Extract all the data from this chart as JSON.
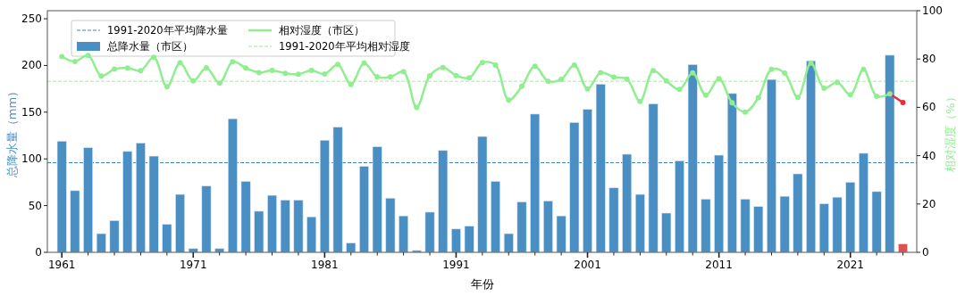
{
  "chart_data": {
    "type": "bar",
    "xlabel": "年份",
    "ylabel": "总降水量（mm）",
    "y2label": "相对湿度（%）",
    "x": [
      1961,
      1962,
      1963,
      1964,
      1965,
      1966,
      1967,
      1968,
      1969,
      1970,
      1971,
      1972,
      1973,
      1974,
      1975,
      1976,
      1977,
      1978,
      1979,
      1980,
      1981,
      1982,
      1983,
      1984,
      1985,
      1986,
      1987,
      1988,
      1989,
      1990,
      1991,
      1992,
      1993,
      1994,
      1995,
      1996,
      1997,
      1998,
      1999,
      2000,
      2001,
      2002,
      2003,
      2004,
      2005,
      2006,
      2007,
      2008,
      2009,
      2010,
      2011,
      2012,
      2013,
      2014,
      2015,
      2016,
      2017,
      2018,
      2019,
      2020,
      2021,
      2022,
      2023,
      2024,
      2025
    ],
    "series": [
      {
        "name": "总降水量（市区）",
        "color": "#4a8fc4",
        "colors": [
          "#4a8fc4",
          "#4a8fc4",
          "#4a8fc4",
          "#4a8fc4",
          "#4a8fc4",
          "#4a8fc4",
          "#4a8fc4",
          "#4a8fc4",
          "#4a8fc4",
          "#4a8fc4",
          "#4a8fc4",
          "#4a8fc4",
          "#4a8fc4",
          "#4a8fc4",
          "#4a8fc4",
          "#4a8fc4",
          "#4a8fc4",
          "#4a8fc4",
          "#4a8fc4",
          "#4a8fc4",
          "#4a8fc4",
          "#4a8fc4",
          "#4a8fc4",
          "#4a8fc4",
          "#4a8fc4",
          "#4a8fc4",
          "#4a8fc4",
          "#4a8fc4",
          "#4a8fc4",
          "#4a8fc4",
          "#4a8fc4",
          "#4a8fc4",
          "#4a8fc4",
          "#4a8fc4",
          "#4a8fc4",
          "#4a8fc4",
          "#4a8fc4",
          "#4a8fc4",
          "#4a8fc4",
          "#4a8fc4",
          "#4a8fc4",
          "#4a8fc4",
          "#4a8fc4",
          "#4a8fc4",
          "#4a8fc4",
          "#4a8fc4",
          "#4a8fc4",
          "#4a8fc4",
          "#4a8fc4",
          "#4a8fc4",
          "#4a8fc4",
          "#4a8fc4",
          "#4a8fc4",
          "#4a8fc4",
          "#4a8fc4",
          "#4a8fc4",
          "#4a8fc4",
          "#4a8fc4",
          "#4a8fc4",
          "#4a8fc4",
          "#4a8fc4",
          "#4a8fc4",
          "#4a8fc4",
          "#4a8fc4",
          "#e05050"
        ],
        "values": [
          119,
          66,
          112,
          20,
          34,
          108,
          117,
          103,
          30,
          62,
          4,
          71,
          4,
          143,
          76,
          44,
          61,
          56,
          56,
          38,
          120,
          134,
          10,
          92,
          113,
          58,
          39,
          2,
          43,
          109,
          25,
          28,
          124,
          76,
          20,
          54,
          148,
          55,
          39,
          139,
          153,
          180,
          69,
          105,
          62,
          159,
          42,
          98,
          201,
          57,
          104,
          170,
          57,
          49,
          185,
          60,
          84,
          205,
          52,
          59,
          75,
          106,
          65,
          211,
          9
        ]
      },
      {
        "type": "line",
        "axis": "y2",
        "color": "#e0303c",
        "marker": "circle",
        "x": [
          2024,
          2025
        ],
        "values": [
          65.6,
          62
        ]
      },
      {
        "name": "相对湿度（市区）",
        "type": "line",
        "axis": "y2",
        "color": "#90ee90",
        "marker": "circle",
        "x": [
          1961,
          1962,
          1963,
          1964,
          1965,
          1966,
          1967,
          1968,
          1969,
          1970,
          1971,
          1972,
          1973,
          1974,
          1975,
          1976,
          1977,
          1978,
          1979,
          1980,
          1981,
          1982,
          1983,
          1984,
          1985,
          1986,
          1987,
          1988,
          1989,
          1990,
          1991,
          1992,
          1993,
          1994,
          1995,
          1996,
          1997,
          1998,
          1999,
          2000,
          2001,
          2002,
          2003,
          2004,
          2005,
          2006,
          2007,
          2008,
          2009,
          2010,
          2011,
          2012,
          2013,
          2014,
          2015,
          2016,
          2017,
          2018,
          2019,
          2020,
          2021,
          2022,
          2023,
          2024
        ],
        "values": [
          81,
          79,
          81.5,
          73,
          75.8,
          76.3,
          75.2,
          80.7,
          68.5,
          78.4,
          70.9,
          76.4,
          70,
          78.9,
          76.3,
          74.4,
          75.3,
          74.1,
          73.7,
          75.3,
          73.8,
          77.8,
          69.5,
          78.3,
          72.6,
          72.6,
          74.7,
          60,
          73.1,
          76.5,
          73.2,
          72.2,
          78.5,
          77.5,
          63,
          68.7,
          77,
          70.8,
          71.6,
          77.5,
          67.6,
          74.4,
          72.5,
          71.7,
          62.5,
          75.2,
          70.9,
          67.4,
          74.3,
          65,
          71.9,
          61.9,
          58,
          64,
          75.7,
          74.2,
          64.1,
          78.3,
          67.9,
          70.4,
          65.2,
          75.7,
          64.6,
          65.6
        ]
      }
    ],
    "ref_lines": [
      {
        "axis": "y",
        "value": 95.9,
        "label": "1991-2020年平均降水量",
        "color": "#3a86c8",
        "line_style": "dashed"
      },
      {
        "axis": "y2",
        "value": 70.8,
        "label": "1991-2020年平均相对湿度",
        "color": "#90ee90",
        "line_style": "dashed"
      }
    ],
    "xlim": [
      1959.9,
      2026.05
    ],
    "xticks": [
      {
        "value": 1961,
        "label": "1961"
      },
      {
        "value": 1963,
        "label": null
      },
      {
        "value": 1965,
        "label": null
      },
      {
        "value": 1967,
        "label": null
      },
      {
        "value": 1969,
        "label": null
      },
      {
        "value": 1971,
        "label": "1971"
      },
      {
        "value": 1973,
        "label": null
      },
      {
        "value": 1975,
        "label": null
      },
      {
        "value": 1977,
        "label": null
      },
      {
        "value": 1979,
        "label": null
      },
      {
        "value": 1981,
        "label": "1981"
      },
      {
        "value": 1983,
        "label": null
      },
      {
        "value": 1985,
        "label": null
      },
      {
        "value": 1987,
        "label": null
      },
      {
        "value": 1989,
        "label": null
      },
      {
        "value": 1991,
        "label": "1991"
      },
      {
        "value": 1993,
        "label": null
      },
      {
        "value": 1995,
        "label": null
      },
      {
        "value": 1997,
        "label": null
      },
      {
        "value": 1999,
        "label": null
      },
      {
        "value": 2001,
        "label": "2001"
      },
      {
        "value": 2003,
        "label": null
      },
      {
        "value": 2005,
        "label": null
      },
      {
        "value": 2007,
        "label": null
      },
      {
        "value": 2009,
        "label": null
      },
      {
        "value": 2011,
        "label": "2011"
      },
      {
        "value": 2013,
        "label": null
      },
      {
        "value": 2015,
        "label": null
      },
      {
        "value": 2017,
        "label": null
      },
      {
        "value": 2019,
        "label": null
      },
      {
        "value": 2021,
        "label": "2021"
      },
      {
        "value": 2023,
        "label": null
      },
      {
        "value": 2025,
        "label": null
      }
    ],
    "ylim": [
      0,
      258.6
    ],
    "yticks": [
      0,
      50,
      100,
      150,
      200,
      250
    ],
    "y2lim": [
      0,
      100
    ],
    "y2ticks": [
      0,
      20,
      40,
      60,
      80,
      100
    ],
    "legend": "top left",
    "grid": false
  }
}
